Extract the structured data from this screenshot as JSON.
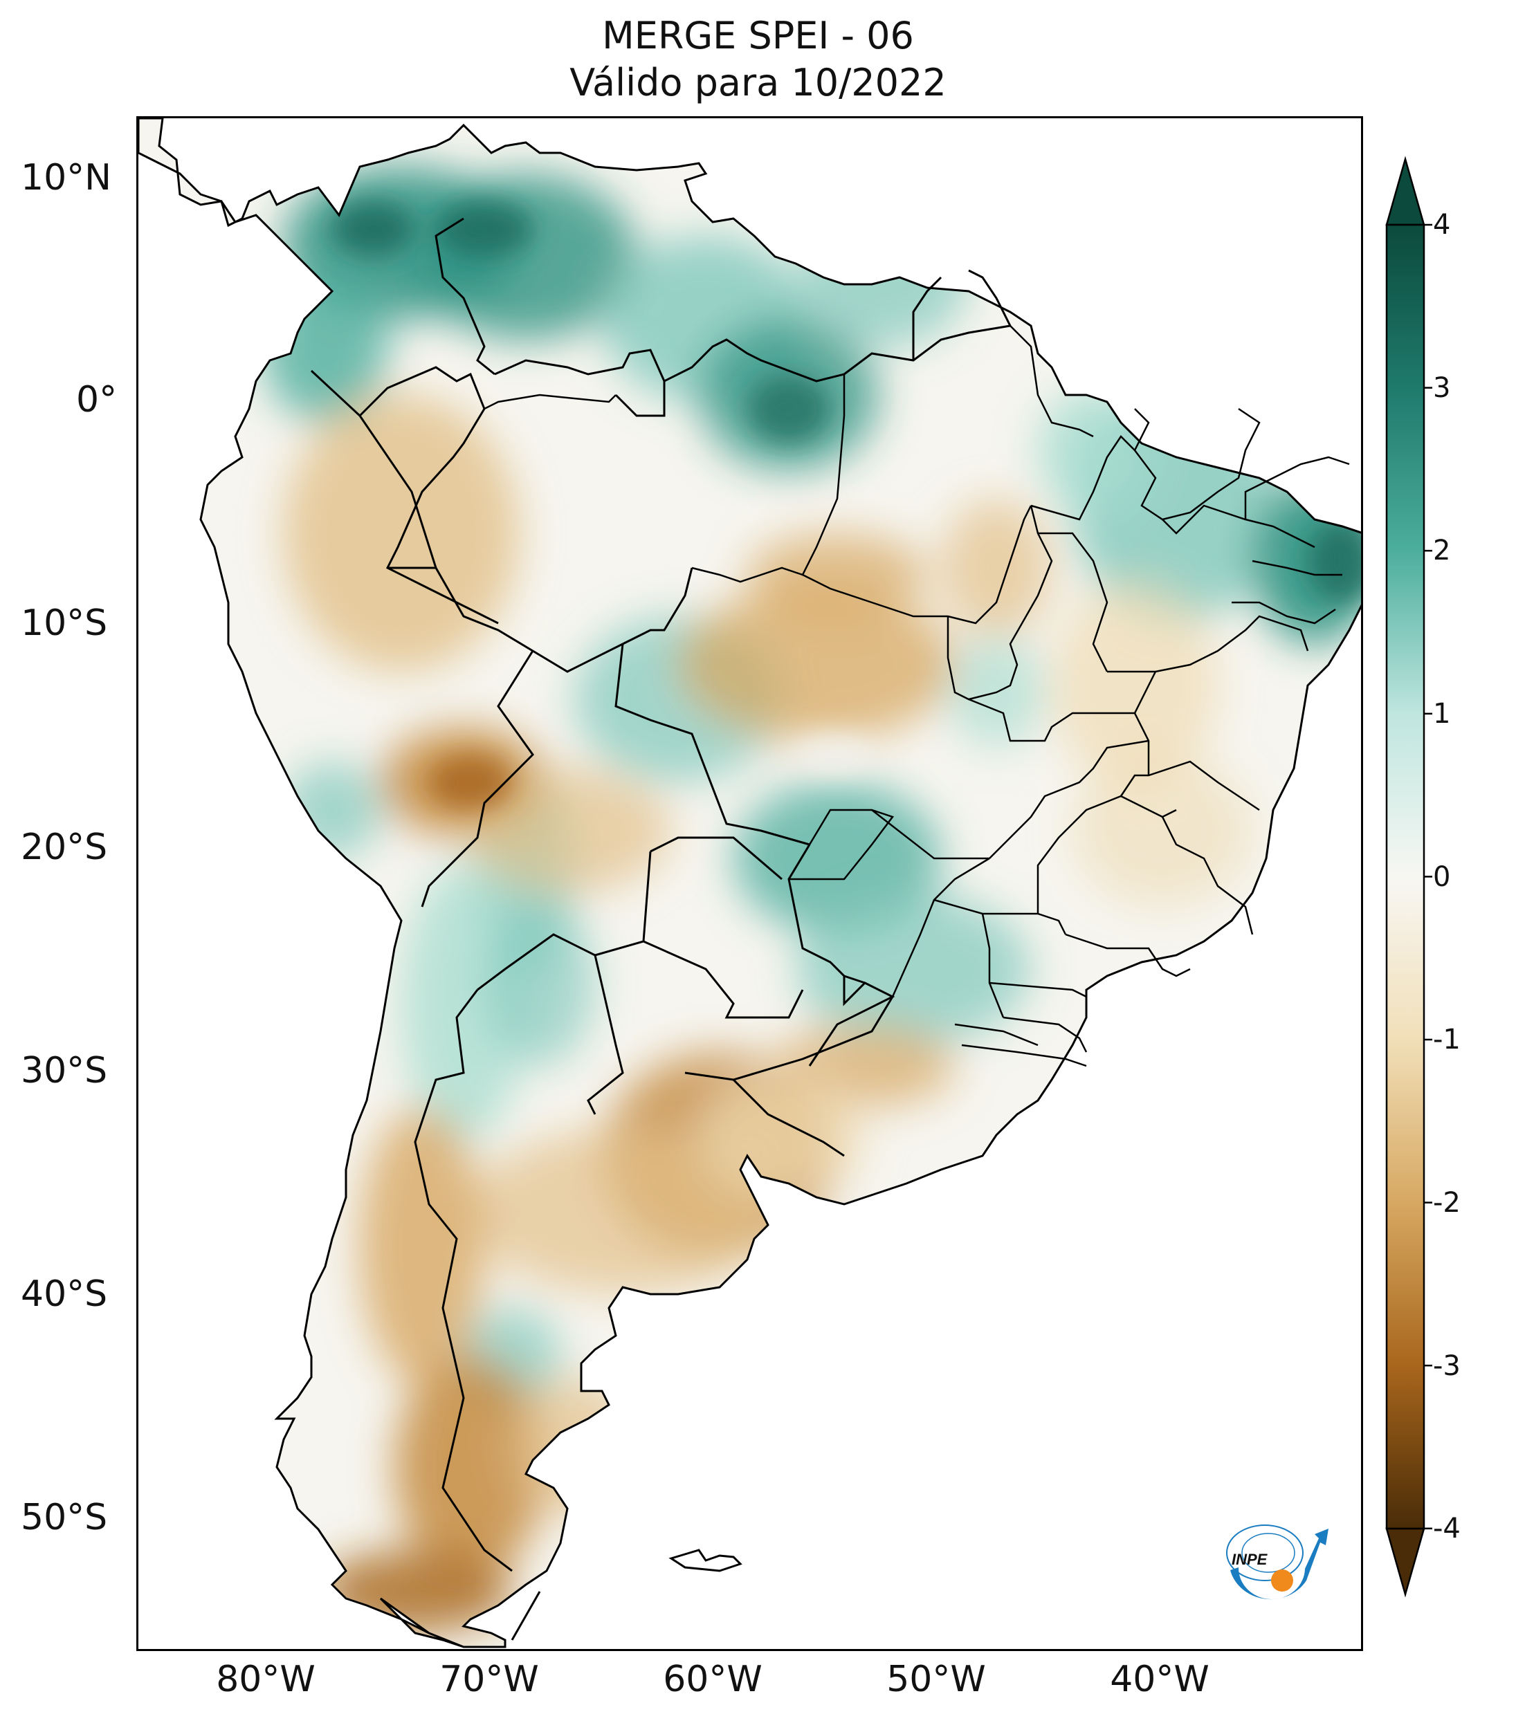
{
  "title": {
    "line1": "MERGE   SPEI - 06",
    "line2": "Válido para 10/2022"
  },
  "axes": {
    "lat_labels": [
      "10°N",
      "0°",
      "10°S",
      "20°S",
      "30°S",
      "40°S",
      "50°S"
    ],
    "lon_labels": [
      "80°W",
      "70°W",
      "60°W",
      "50°W",
      "40°W"
    ]
  },
  "colorbar": {
    "tick_labels": [
      "4",
      "3",
      "2",
      "1",
      "0",
      "-1",
      "-2",
      "-3",
      "-4"
    ],
    "colors": {
      "wet_max": "#0b4a3c",
      "wet_high": "#1f7a6c",
      "wet_mid": "#4cae9d",
      "wet_low": "#bfe6df",
      "neutral": "#f7f7f3",
      "dry_low": "#f1dfb8",
      "dry_mid": "#d7a862",
      "dry_high": "#a8661c",
      "dry_max": "#4a2c08"
    }
  },
  "logo": {
    "text": "INPE",
    "colors": {
      "arrow": "#1a7cc1",
      "dot": "#f08a1c"
    }
  }
}
